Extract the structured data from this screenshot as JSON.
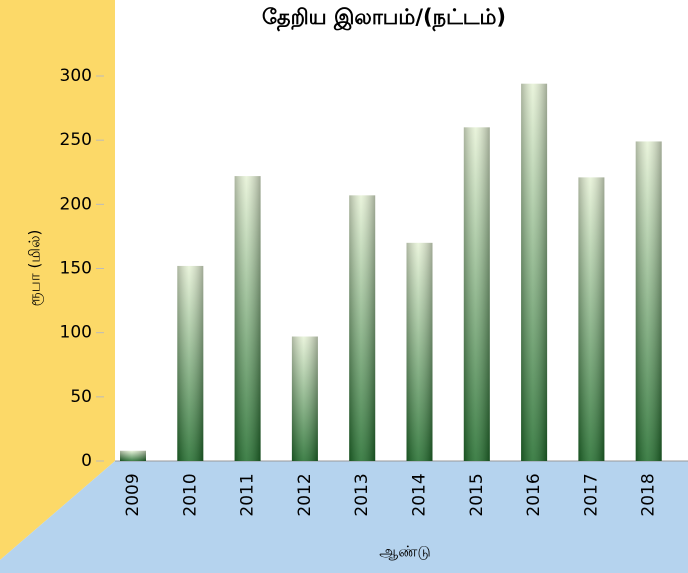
{
  "chart_data": {
    "type": "bar",
    "title": "தேறிய  இலாபம்/(நட்டம்)",
    "y_label": "ரூபா  (மில்)",
    "x_label": "ஆண்டு",
    "categories": [
      "2009",
      "2010",
      "2011",
      "2012",
      "2013",
      "2014",
      "2015",
      "2016",
      "2017",
      "2018"
    ],
    "values": [
      8,
      152,
      222,
      97,
      207,
      170,
      260,
      294,
      221,
      249
    ],
    "color": "#1f6b2a",
    "ylim": [
      0,
      300
    ],
    "yticks": [
      0,
      50,
      100,
      150,
      200,
      250,
      300
    ],
    "grid": false
  }
}
